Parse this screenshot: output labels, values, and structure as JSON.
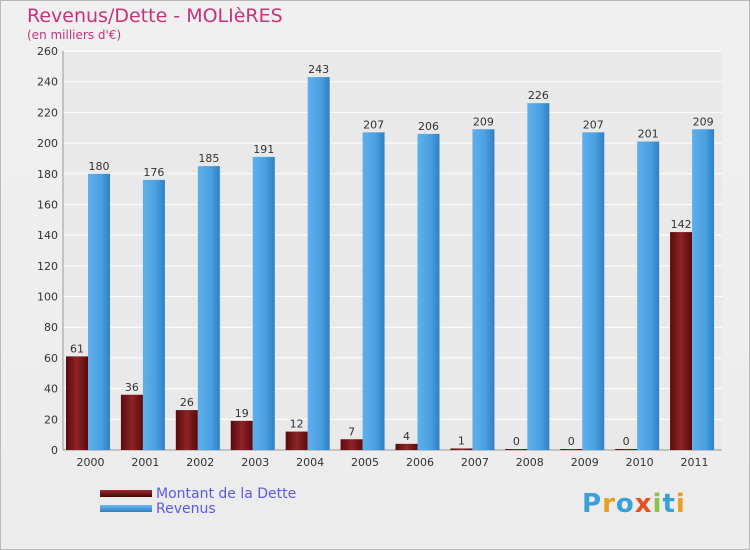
{
  "title": "Revenus/Dette - MOLIèRES",
  "subtitle": "(en milliers d'€)",
  "logo_text": "Proxiti",
  "colors": {
    "title": "#c7327a",
    "dette": "#6b1214",
    "revenus": "#4da0e0",
    "legend_text": "#5a5ae8",
    "grid": "#ffffff",
    "background": "#eeeeee"
  },
  "legend": [
    {
      "label": "Montant de la Dette",
      "color": "#6b1214"
    },
    {
      "label": "Revenus",
      "color": "#4da0e0"
    }
  ],
  "chart_data": {
    "type": "bar",
    "categories": [
      "2000",
      "2001",
      "2002",
      "2003",
      "2004",
      "2005",
      "2006",
      "2007",
      "2008",
      "2009",
      "2010",
      "2011"
    ],
    "series": [
      {
        "name": "Montant de la Dette",
        "values": [
          61,
          36,
          26,
          19,
          12,
          7,
          4,
          1,
          0,
          0,
          0,
          142
        ]
      },
      {
        "name": "Revenus",
        "values": [
          180,
          176,
          185,
          191,
          243,
          207,
          206,
          209,
          226,
          207,
          201,
          209
        ]
      }
    ],
    "ylim": [
      0,
      260
    ],
    "yticks": [
      0,
      20,
      40,
      60,
      80,
      100,
      120,
      140,
      160,
      180,
      200,
      220,
      240,
      260
    ],
    "grid": true,
    "legend_position": "bottom-left"
  }
}
